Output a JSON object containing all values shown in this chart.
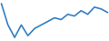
{
  "y_values": [
    10,
    4,
    0.5,
    4,
    1,
    3,
    4,
    5,
    6,
    5.5,
    7,
    6.5,
    8,
    7,
    9,
    8.5,
    7.5
  ],
  "line_color": "#3380c4",
  "line_width": 1.2,
  "background_color": "#ffffff",
  "ylim": [
    -0.5,
    11
  ],
  "xlim": [
    -0.2,
    16.2
  ]
}
